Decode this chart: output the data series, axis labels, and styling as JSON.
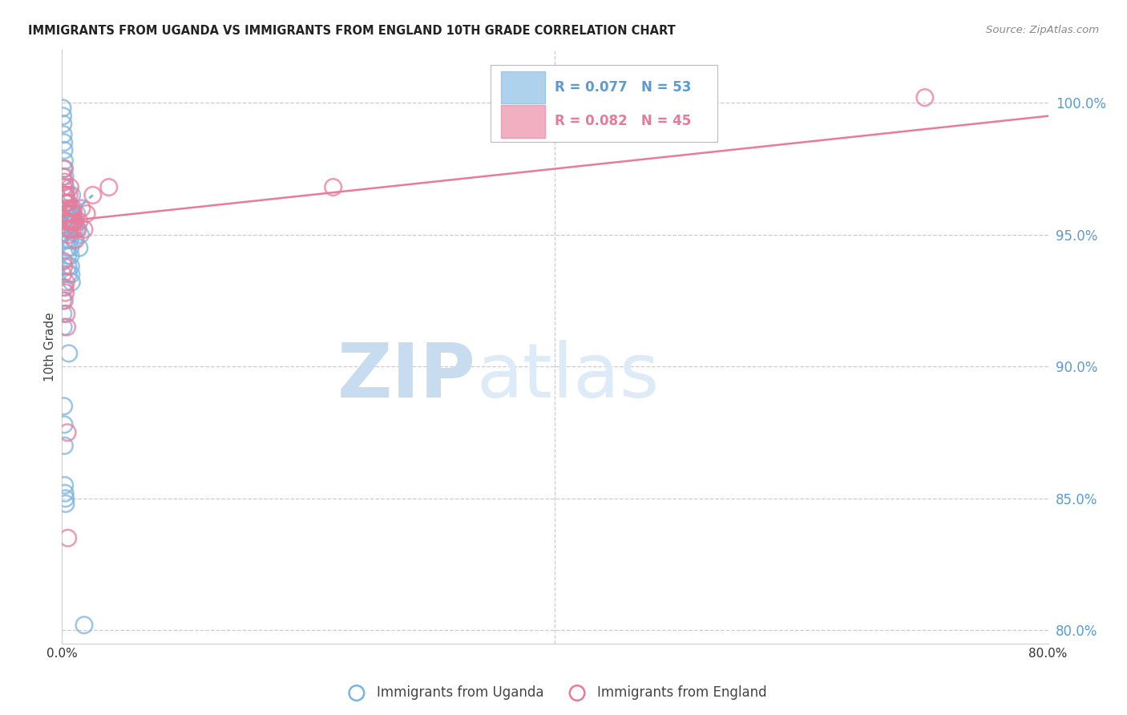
{
  "title": "IMMIGRANTS FROM UGANDA VS IMMIGRANTS FROM ENGLAND 10TH GRADE CORRELATION CHART",
  "source": "Source: ZipAtlas.com",
  "ylabel": "10th Grade",
  "right_yticks": [
    100.0,
    95.0,
    90.0,
    85.0,
    80.0
  ],
  "right_ytick_labels": [
    "100.0%",
    "95.0%",
    "90.0%",
    "85.0%",
    "80.0%"
  ],
  "legend_bottom_labels": [
    "Immigrants from Uganda",
    "Immigrants from England"
  ],
  "uganda_color": "#7ab4e0",
  "england_color": "#e87b9a",
  "uganda_R": 0.077,
  "uganda_N": 53,
  "england_R": 0.082,
  "england_N": 45,
  "xlim": [
    0.0,
    80.0
  ],
  "ylim": [
    79.5,
    102.0
  ],
  "watermark_zip": "ZIP",
  "watermark_atlas": "atlas",
  "watermark_color": "#d6e8f7",
  "uganda_scatter_x": [
    0.05,
    0.08,
    0.1,
    0.12,
    0.15,
    0.18,
    0.2,
    0.22,
    0.25,
    0.28,
    0.3,
    0.32,
    0.35,
    0.38,
    0.4,
    0.42,
    0.45,
    0.48,
    0.5,
    0.52,
    0.55,
    0.58,
    0.6,
    0.62,
    0.65,
    0.68,
    0.7,
    0.72,
    0.75,
    0.78,
    0.8,
    0.85,
    0.9,
    0.95,
    1.0,
    1.1,
    1.2,
    1.3,
    1.4,
    1.5,
    0.05,
    0.08,
    0.1,
    0.12,
    0.15,
    0.18,
    0.2,
    0.22,
    0.25,
    0.28,
    0.3,
    0.55,
    1.8
  ],
  "uganda_scatter_y": [
    99.8,
    99.5,
    99.2,
    98.8,
    98.5,
    98.2,
    97.8,
    97.5,
    97.2,
    96.8,
    96.5,
    96.2,
    95.8,
    95.5,
    95.2,
    94.8,
    94.5,
    94.2,
    93.8,
    93.5,
    96.2,
    95.8,
    95.5,
    95.2,
    94.8,
    94.5,
    94.2,
    93.8,
    93.5,
    93.2,
    96.5,
    95.8,
    95.5,
    94.8,
    95.2,
    95.5,
    95.8,
    95.2,
    94.5,
    95.0,
    93.0,
    92.5,
    92.0,
    91.5,
    88.5,
    87.8,
    87.0,
    85.5,
    85.2,
    85.0,
    84.8,
    90.5,
    80.2
  ],
  "england_scatter_x": [
    0.06,
    0.1,
    0.14,
    0.18,
    0.22,
    0.26,
    0.3,
    0.34,
    0.38,
    0.42,
    0.46,
    0.5,
    0.54,
    0.58,
    0.62,
    0.66,
    0.7,
    0.74,
    0.78,
    0.82,
    0.86,
    0.9,
    0.95,
    1.0,
    1.1,
    1.2,
    1.4,
    1.6,
    1.8,
    2.0,
    0.08,
    0.12,
    0.16,
    0.2,
    0.24,
    0.28,
    0.32,
    0.36,
    0.4,
    22.0,
    70.0,
    2.5,
    0.44,
    0.48,
    3.8
  ],
  "england_scatter_y": [
    97.2,
    96.8,
    97.5,
    96.5,
    97.0,
    96.2,
    95.8,
    96.5,
    96.0,
    95.5,
    96.2,
    95.0,
    95.8,
    96.5,
    95.2,
    96.8,
    95.5,
    96.0,
    95.8,
    95.2,
    95.5,
    96.0,
    95.8,
    95.5,
    94.8,
    95.2,
    95.5,
    96.0,
    95.2,
    95.8,
    93.5,
    94.0,
    93.8,
    92.5,
    93.0,
    92.8,
    93.2,
    92.0,
    91.5,
    96.8,
    100.2,
    96.5,
    87.5,
    83.5,
    96.8
  ],
  "uganda_trendline_x": [
    0.05,
    2.5
  ],
  "uganda_trendline_y": [
    95.5,
    96.5
  ],
  "england_trendline_x": [
    0.0,
    80.0
  ],
  "england_trendline_y": [
    95.5,
    99.5
  ]
}
